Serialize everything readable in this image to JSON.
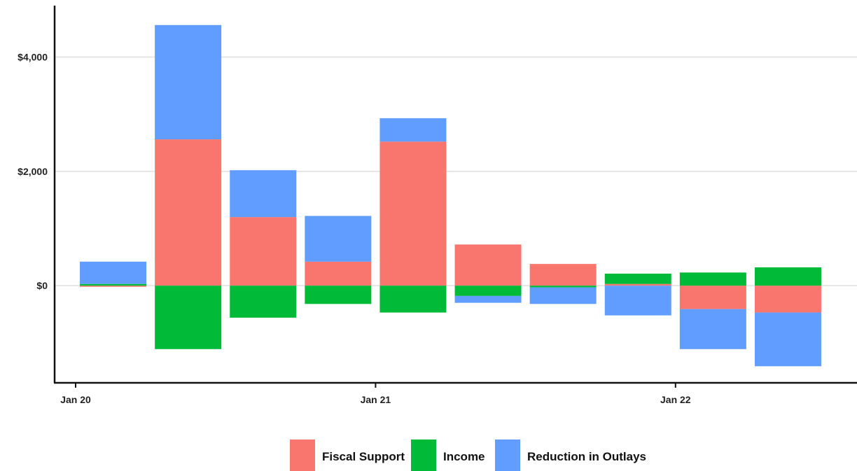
{
  "chart_data": {
    "type": "bar",
    "stacked": true,
    "title": "",
    "xlabel": "",
    "ylabel": "",
    "categories": [
      "2020-Q1",
      "2020-Q2",
      "2020-Q3",
      "2020-Q4",
      "2021-Q1",
      "2021-Q2",
      "2021-Q3",
      "2021-Q4",
      "2022-Q1",
      "2022-Q2"
    ],
    "x_ticks": [
      {
        "label": "Jan 20",
        "at": "2020-Q1"
      },
      {
        "label": "Jan 21",
        "at": "2021-Q1"
      },
      {
        "label": "Jan 22",
        "at": "2022-Q1"
      }
    ],
    "y_ticks": [
      {
        "label": "$0",
        "value": 0
      },
      {
        "label": "$2,000",
        "value": 2000
      },
      {
        "label": "$4,000",
        "value": 4000
      }
    ],
    "ylim": [
      -1700,
      4900
    ],
    "grid": true,
    "legend_position": "bottom",
    "series": [
      {
        "name": "Fiscal Support",
        "color": "#F8766D",
        "values": [
          -20,
          2560,
          1200,
          420,
          2520,
          720,
          380,
          30,
          -410,
          -470
        ]
      },
      {
        "name": "Income",
        "color": "#00BA38",
        "values": [
          30,
          -1110,
          -560,
          -320,
          -470,
          -180,
          -30,
          180,
          230,
          320
        ]
      },
      {
        "name": "Reduction in Outlays",
        "color": "#619CFF",
        "values": [
          390,
          2000,
          820,
          800,
          410,
          -120,
          -290,
          -520,
          -700,
          -940
        ]
      }
    ]
  }
}
